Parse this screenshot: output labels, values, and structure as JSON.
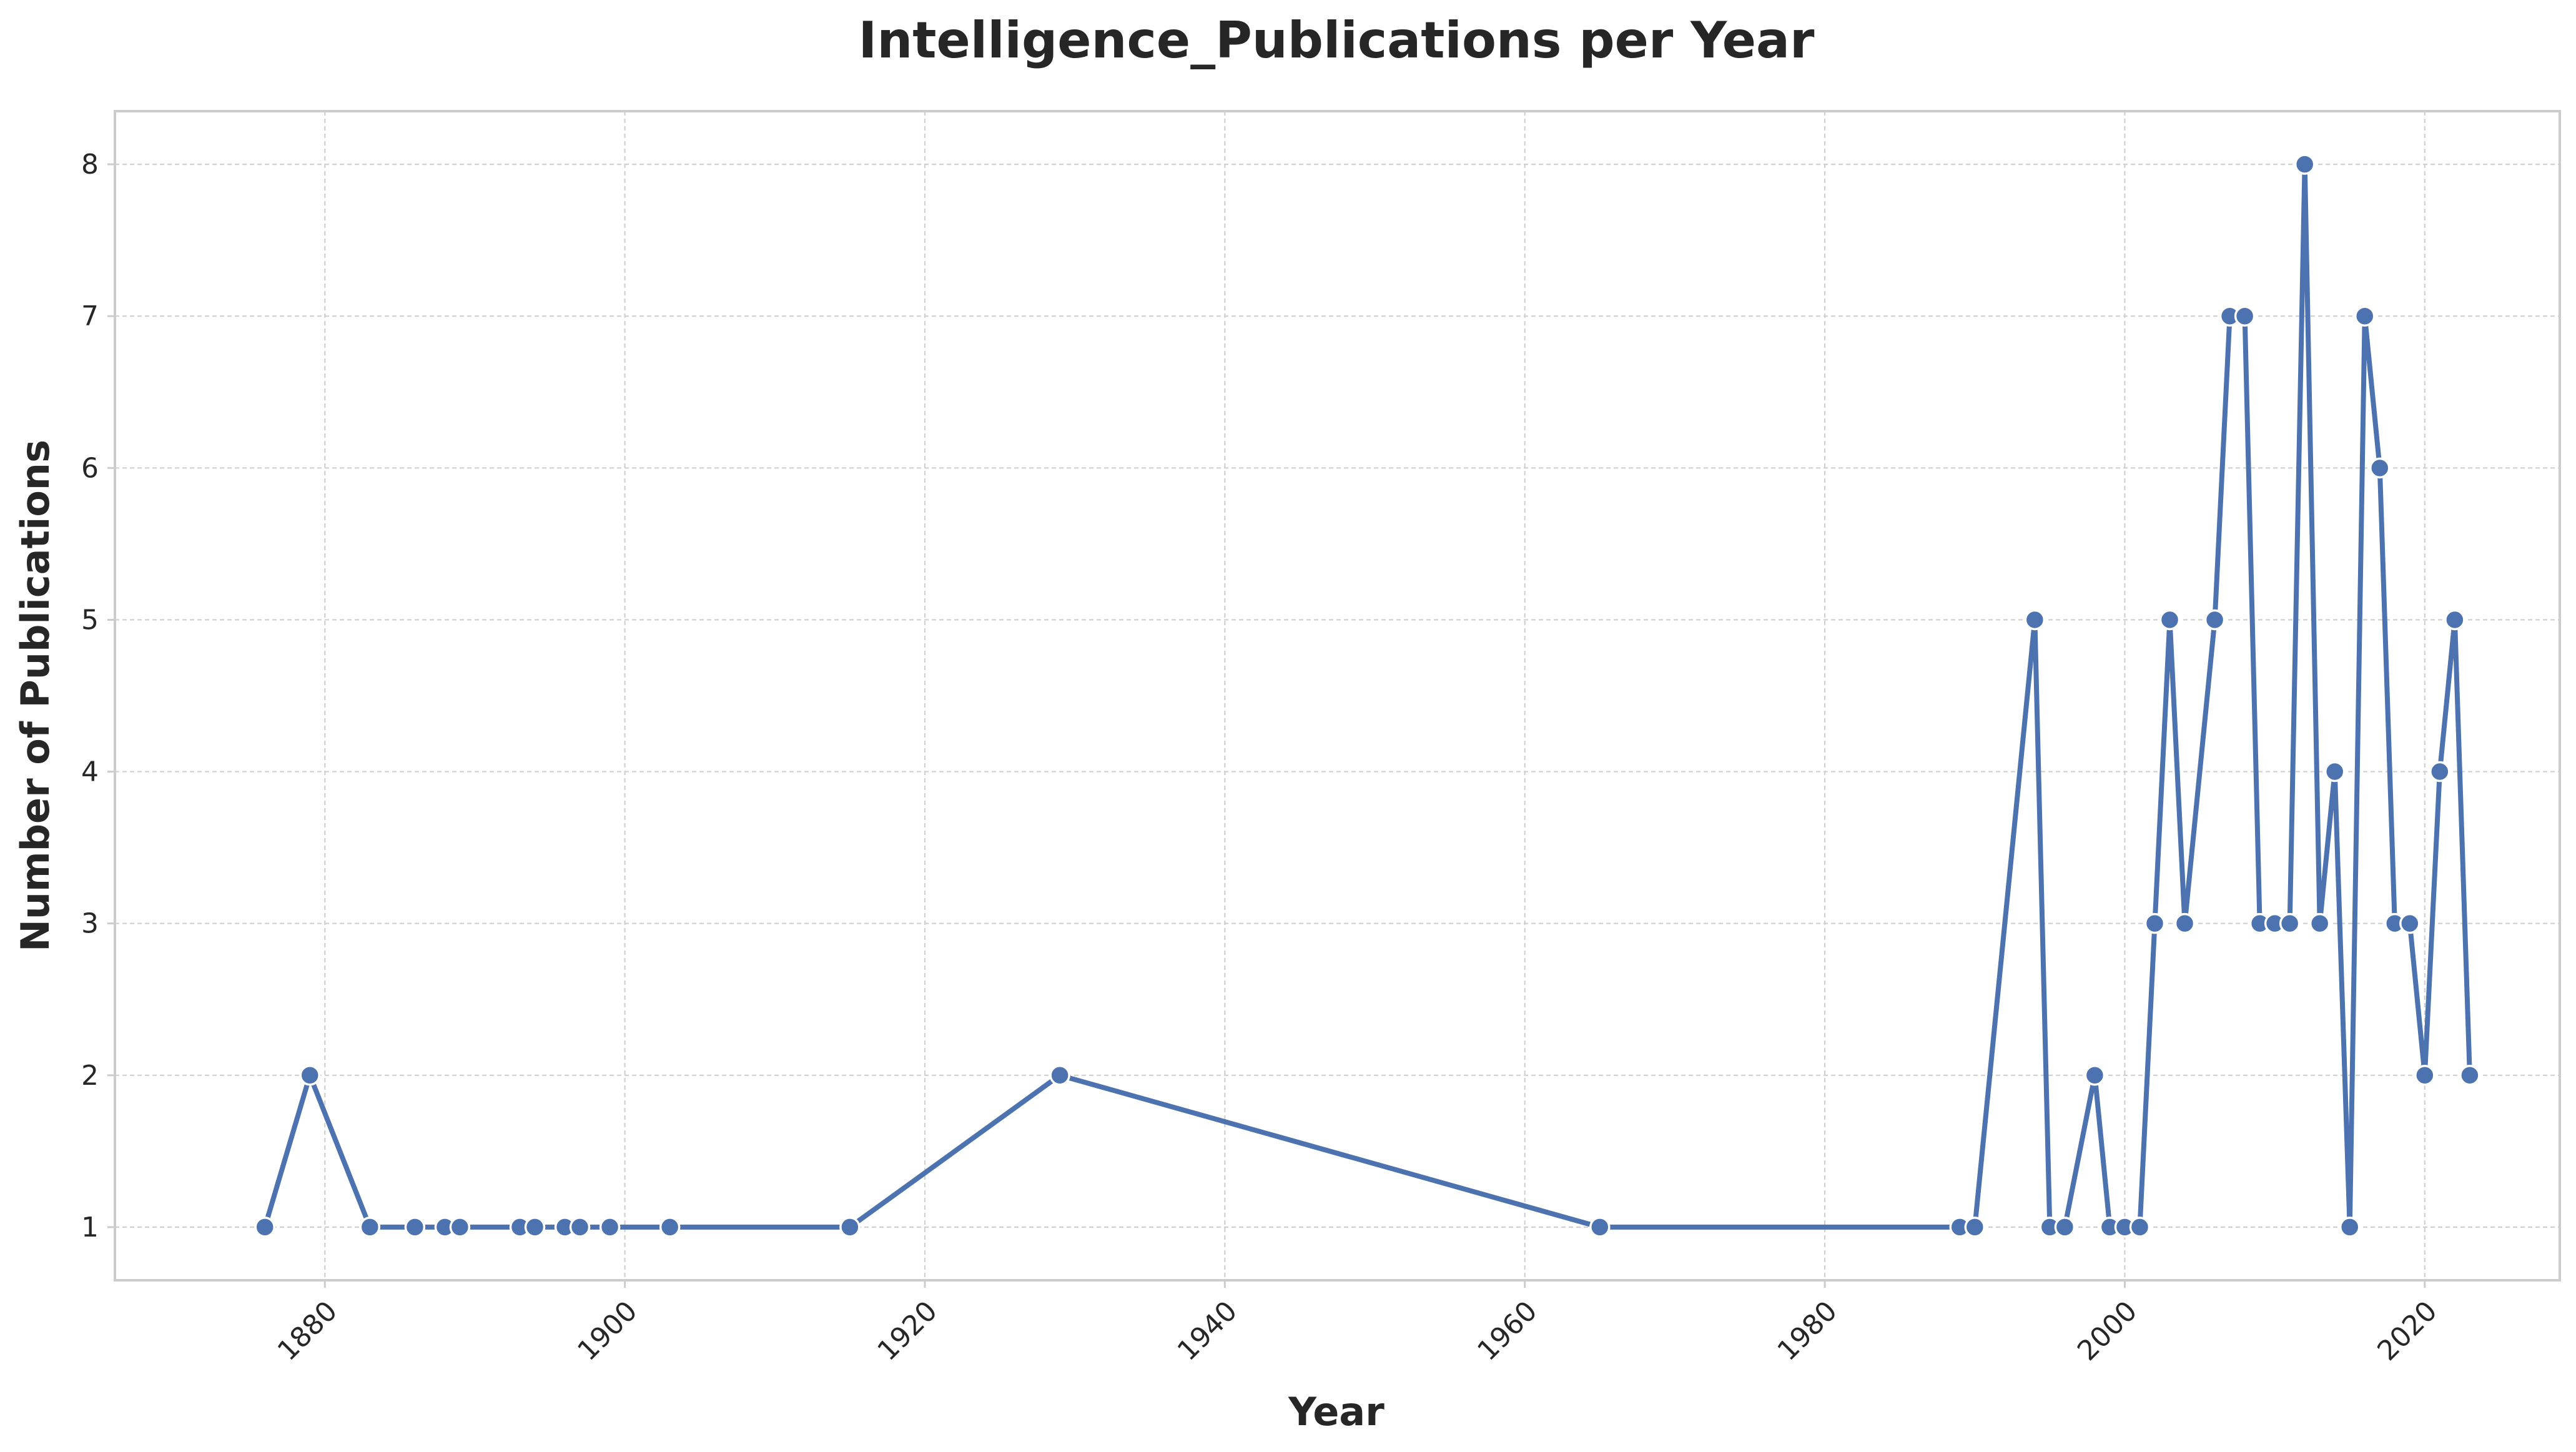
{
  "chart_data": {
    "type": "line",
    "title": "Intelligence_Publications per Year",
    "xlabel": "Year",
    "ylabel": "Number of Publications",
    "xlim": [
      1866,
      2029
    ],
    "ylim": [
      0.65,
      8.35
    ],
    "xticks": [
      1880,
      1900,
      1920,
      1940,
      1960,
      1980,
      2000,
      2020
    ],
    "yticks": [
      1,
      2,
      3,
      4,
      5,
      6,
      7,
      8
    ],
    "grid": true,
    "marker": "circle",
    "color": "#4c72b0",
    "series": [
      {
        "x": [
          1876,
          1879,
          1883,
          1886,
          1888,
          1889,
          1893,
          1894,
          1896,
          1897,
          1899,
          1903,
          1915,
          1929,
          1965,
          1989,
          1990,
          1994,
          1995,
          1996,
          1998,
          1999,
          2000,
          2001,
          2002,
          2003,
          2004,
          2006,
          2007,
          2008,
          2009,
          2010,
          2011,
          2012,
          2013,
          2014,
          2015,
          2016,
          2017,
          2018,
          2019,
          2020,
          2021,
          2022,
          2023
        ],
        "values": [
          1,
          2,
          1,
          1,
          1,
          1,
          1,
          1,
          1,
          1,
          1,
          1,
          1,
          2,
          1,
          1,
          1,
          5,
          1,
          1,
          2,
          1,
          1,
          1,
          3,
          5,
          3,
          5,
          7,
          7,
          3,
          3,
          3,
          8,
          3,
          4,
          1,
          7,
          6,
          3,
          3,
          2,
          4,
          5,
          2
        ]
      }
    ]
  }
}
